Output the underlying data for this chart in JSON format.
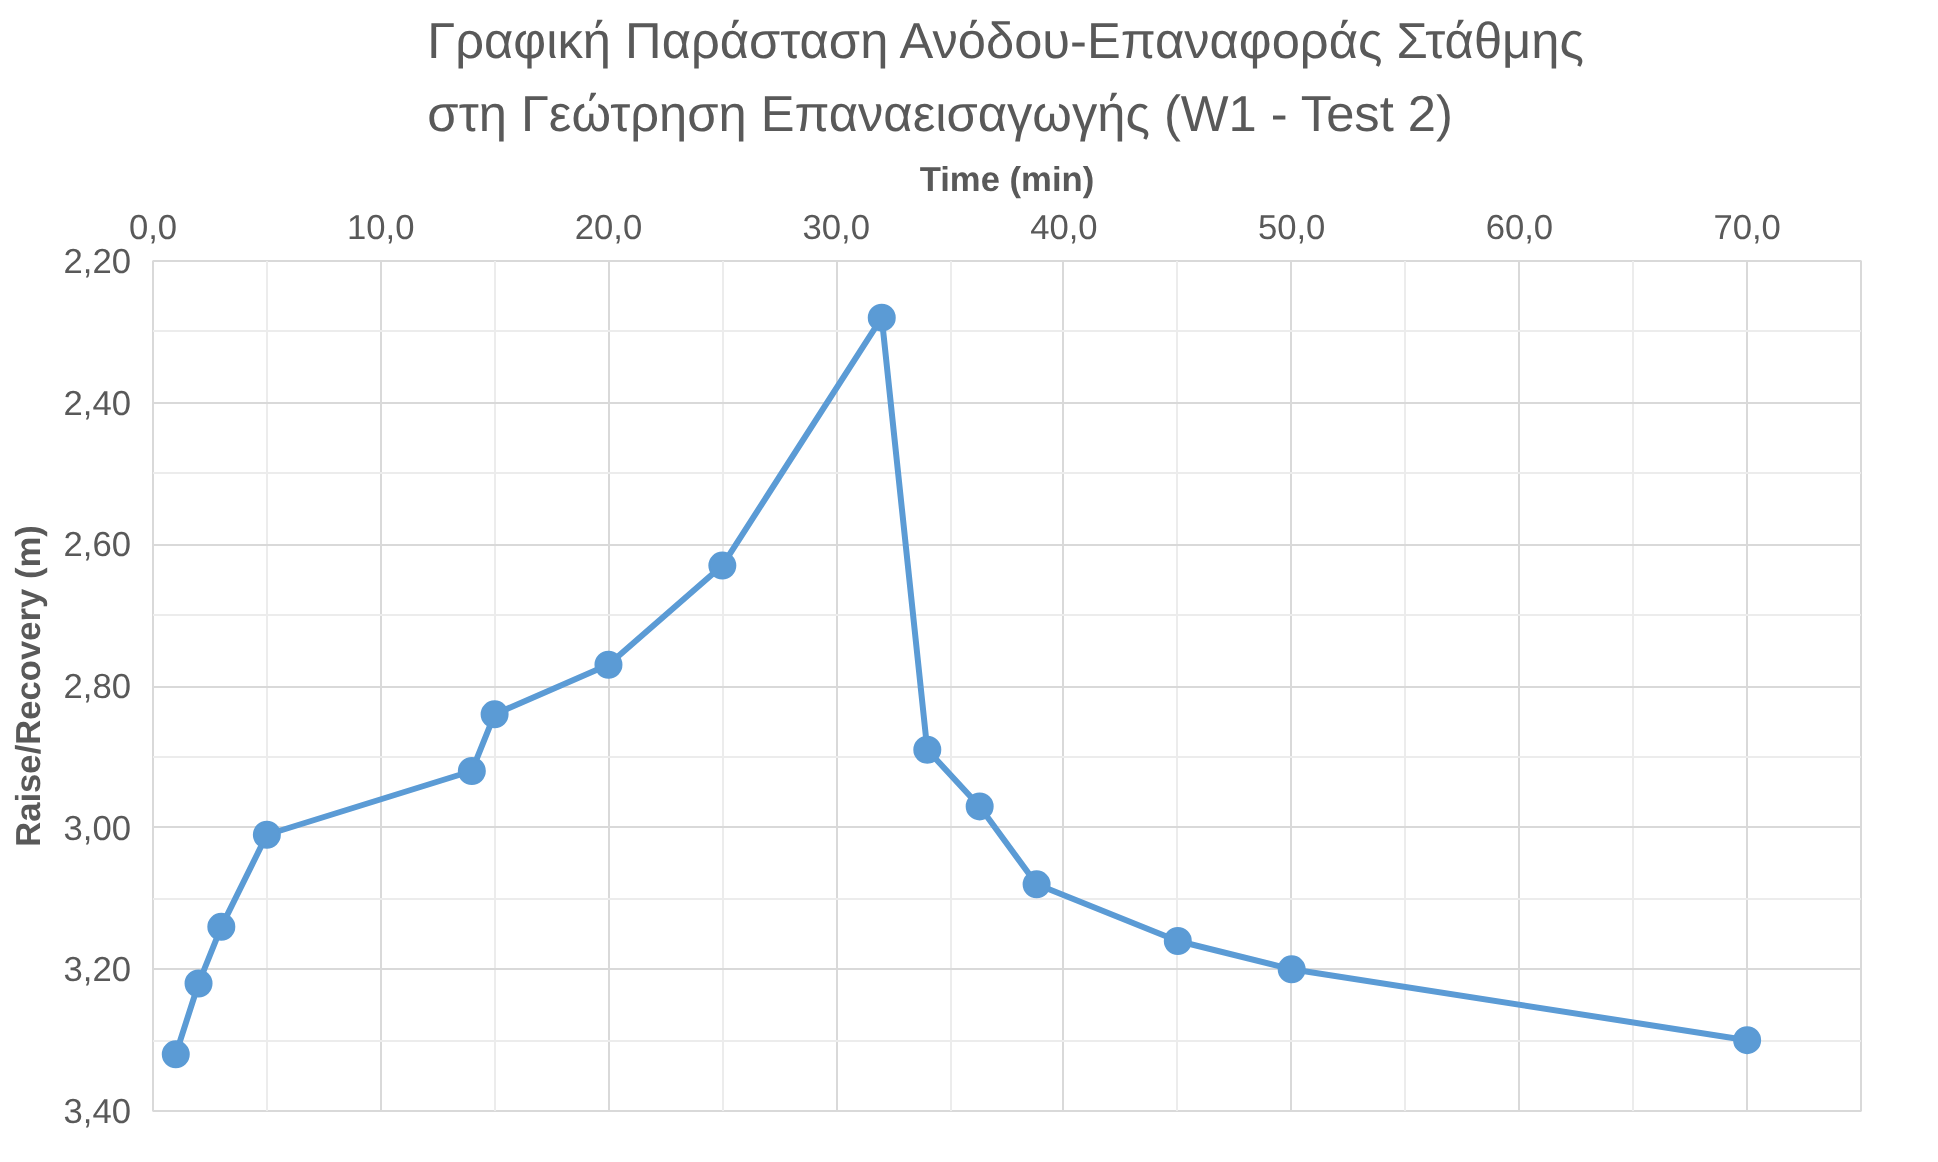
{
  "chart_data": {
    "type": "line",
    "title": "Γραφική Παράσταση Ανόδου-Επαναφοράς Στάθμης στη Γεώτρηση Επαναεισαγωγής (W1 - Test 2)",
    "xlabel": "Time (min)",
    "ylabel": "Raise/Recovery (m)",
    "x": [
      1,
      2,
      3,
      5,
      14,
      15,
      20,
      25,
      32,
      34,
      36.3,
      38.8,
      45,
      50,
      70
    ],
    "series": [
      {
        "color": "#5b9bd5",
        "values": [
          3.32,
          3.22,
          3.14,
          3.01,
          2.92,
          2.84,
          2.77,
          2.63,
          2.28,
          2.89,
          2.97,
          3.08,
          3.16,
          3.2,
          3.3
        ]
      }
    ],
    "xlim": [
      0,
      75
    ],
    "xticks": [
      {
        "value": 0,
        "label": "0,0"
      },
      {
        "value": 10,
        "label": "10,0"
      },
      {
        "value": 20,
        "label": "20,0"
      },
      {
        "value": 30,
        "label": "30,0"
      },
      {
        "value": 40,
        "label": "40,0"
      },
      {
        "value": 50,
        "label": "50,0"
      },
      {
        "value": 60,
        "label": "60,0"
      },
      {
        "value": 70,
        "label": "70,0"
      }
    ],
    "ylim": [
      3.4,
      2.2
    ],
    "yticks": [
      {
        "value": 2.2,
        "label": "2,20"
      },
      {
        "value": 2.4,
        "label": "2,40"
      },
      {
        "value": 2.6,
        "label": "2,60"
      },
      {
        "value": 2.8,
        "label": "2,80"
      },
      {
        "value": 3.0,
        "label": "3,00"
      },
      {
        "value": 3.2,
        "label": "3,20"
      },
      {
        "value": 3.4,
        "label": "3,40"
      }
    ],
    "grid": true,
    "marker": "circle",
    "line_style": "solid"
  }
}
